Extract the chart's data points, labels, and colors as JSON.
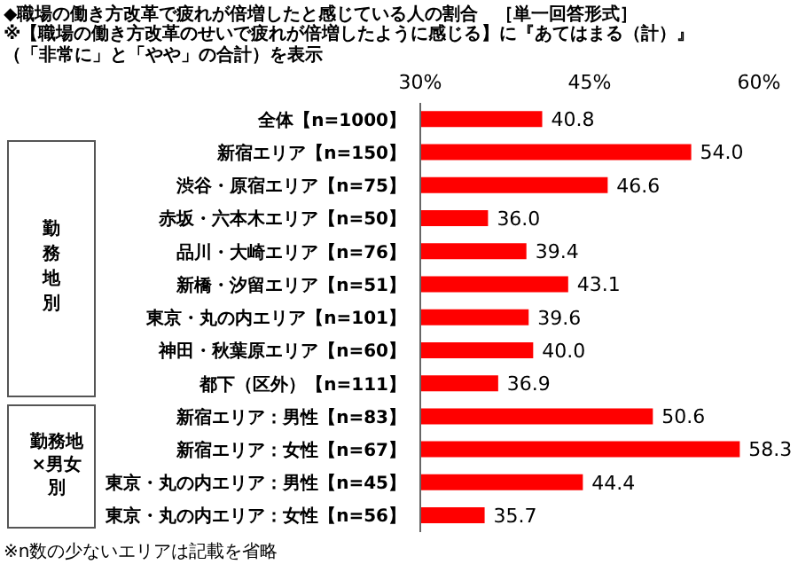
{
  "chart_data": {
    "type": "bar",
    "orientation": "horizontal",
    "title": "◆職場の働き方改革で疲れが倍増したと感じている人の割合　［単一回答形式］",
    "subtitle": "※【職場の働き方改革のせいで疲れが倍増したように感じる】に『あてはまる（計）』（「非常に」と「やや」の合計）を表示",
    "categories": [
      "全体【n=1000】",
      "新宿エリア【n=150】",
      "渋谷・原宿エリア【n=75】",
      "赤坂・六本木エリア【n=50】",
      "品川・大崎エリア【n=76】",
      "新橋・汐留エリア【n=51】",
      "東京・丸の内エリア【n=101】",
      "神田・秋葉原エリア【n=60】",
      "都下（区外）【n=111】",
      "新宿エリア：男性【n=83】",
      "新宿エリア：女性【n=67】",
      "東京・丸の内エリア：男性【n=45】",
      "東京・丸の内エリア：女性【n=56】"
    ],
    "values": [
      40.8,
      54.0,
      46.6,
      36.0,
      39.4,
      43.1,
      39.6,
      40.0,
      36.9,
      50.6,
      58.3,
      44.4,
      35.7
    ],
    "color": "#ff0000",
    "xlim": [
      30,
      60
    ],
    "xticks": [
      {
        "value": 30,
        "label": "30%"
      },
      {
        "value": 45,
        "label": "45%"
      },
      {
        "value": 60,
        "label": "60%"
      }
    ],
    "value_labels": [
      "40.8",
      "54.0",
      "46.6",
      "36.0",
      "39.4",
      "43.1",
      "39.6",
      "40.0",
      "36.9",
      "50.6",
      "58.3",
      "44.4",
      "35.7"
    ],
    "annotations": [
      "勤務地別",
      "勤務地×男女別",
      "※n数の少ないエリアは記載を省略"
    ]
  }
}
